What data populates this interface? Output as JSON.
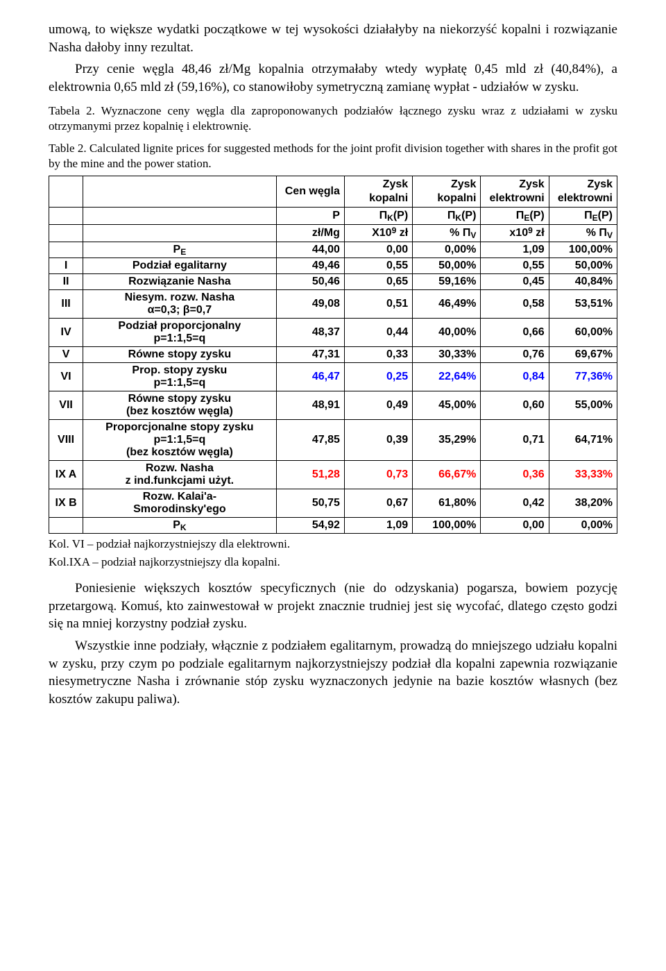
{
  "para1": "umową, to większe wydatki początkowe w tej wysokości działałyby na niekorzyść kopalni i rozwiązanie Nasha dałoby inny rezultat.",
  "para2": "Przy cenie węgla 48,46 zł/Mg kopalnia otrzymałaby wtedy wypłatę 0,45 mld zł (40,84%), a elektrownia 0,65 mld zł (59,16%), co stanowiłoby symetryczną zamianę wypłat - udziałów w zysku.",
  "caption_pl": "Tabela 2. Wyznaczone ceny węgla dla zaproponowanych podziałów łącznego zysku wraz z udziałami w zysku otrzymanymi przez kopalnię i elektrownię.",
  "caption_en": "Table 2. Calculated lignite prices for suggested methods for the joint profit division together with shares in the profit got by the mine and the power station.",
  "header": {
    "cen": "Cen węgla",
    "zk1": "Zysk\nkopalni",
    "zk2": "Zysk\nkopalni",
    "ze1": "Zysk\nelektrowni",
    "ze2": "Zysk\nelektrowni",
    "P": "P",
    "PiK": "Π_K(P)",
    "PiK2": "Π_K(P)",
    "PiE": "Π_E(P)",
    "PiE2": "Π_E(P)",
    "unit_p": "zł/Mg",
    "unit_c": "X10^9 zł",
    "unit_pv": "% Π_V",
    "unit_c2": "x10^9 zł",
    "unit_pv2": "% Π_V"
  },
  "rows": [
    {
      "idx": "",
      "label": "P_E",
      "p": "44,00",
      "c1": "0,00",
      "c2": "0,00%",
      "c3": "1,09",
      "c4": "100,00%",
      "color": "#000000"
    },
    {
      "idx": "I",
      "label": "Podział egalitarny",
      "p": "49,46",
      "c1": "0,55",
      "c2": "50,00%",
      "c3": "0,55",
      "c4": "50,00%",
      "color": "#000000"
    },
    {
      "idx": "II",
      "label": "Rozwiązanie Nasha",
      "p": "50,46",
      "c1": "0,65",
      "c2": "59,16%",
      "c3": "0,45",
      "c4": "40,84%",
      "color": "#000000"
    },
    {
      "idx": "III",
      "label": "Niesym. rozw. Nasha\nα=0,3; β=0,7",
      "p": "49,08",
      "c1": "0,51",
      "c2": "46,49%",
      "c3": "0,58",
      "c4": "53,51%",
      "color": "#000000"
    },
    {
      "idx": "IV",
      "label": "Podział proporcjonalny\np=1:1,5=q",
      "p": "48,37",
      "c1": "0,44",
      "c2": "40,00%",
      "c3": "0,66",
      "c4": "60,00%",
      "color": "#000000"
    },
    {
      "idx": "V",
      "label": "Równe stopy zysku",
      "p": "47,31",
      "c1": "0,33",
      "c2": "30,33%",
      "c3": "0,76",
      "c4": "69,67%",
      "color": "#000000"
    },
    {
      "idx": "VI",
      "label": "Prop. stopy zysku\np=1:1,5=q",
      "p": "46,47",
      "c1": "0,25",
      "c2": "22,64%",
      "c3": "0,84",
      "c4": "77,36%",
      "color": "#0000ff"
    },
    {
      "idx": "VII",
      "label": "Równe stopy zysku\n(bez kosztów węgla)",
      "p": "48,91",
      "c1": "0,49",
      "c2": "45,00%",
      "c3": "0,60",
      "c4": "55,00%",
      "color": "#000000"
    },
    {
      "idx": "VIII",
      "label": "Proporcjonalne stopy zysku\np=1:1,5=q\n(bez kosztów węgla)",
      "p": "47,85",
      "c1": "0,39",
      "c2": "35,29%",
      "c3": "0,71",
      "c4": "64,71%",
      "color": "#000000"
    },
    {
      "idx": "IX A",
      "label": "Rozw. Nasha\nz ind.funkcjami użyt.",
      "p": "51,28",
      "c1": "0,73",
      "c2": "66,67%",
      "c3": "0,36",
      "c4": "33,33%",
      "color": "#ff0000"
    },
    {
      "idx": "IX B",
      "label": "Rozw. Kalai'a-\nSmorodinsky'ego",
      "p": "50,75",
      "c1": "0,67",
      "c2": "61,80%",
      "c3": "0,42",
      "c4": "38,20%",
      "color": "#000000"
    },
    {
      "idx": "",
      "label": "P_K",
      "p": "54,92",
      "c1": "1,09",
      "c2": "100,00%",
      "c3": "0,00",
      "c4": "0,00%",
      "color": "#000000"
    }
  ],
  "footnote1": "Kol. VI    – podział najkorzystniejszy dla elektrowni.",
  "footnote2": "Kol.IXA  – podział najkorzystniejszy dla kopalni.",
  "para3": "Poniesienie większych kosztów specyficznych (nie do odzyskania) pogarsza, bowiem pozycję przetargową. Komuś, kto zainwestował w projekt znacznie trudniej jest się wycofać, dlatego często godzi się na mniej korzystny podział zysku.",
  "para4": "Wszystkie inne podziały, włącznie z podziałem egalitarnym, prowadzą do mniejszego udziału kopalni w zysku, przy czym po podziale egalitarnym najkorzystniejszy podział dla kopalni zapewnia rozwiązanie niesymetryczne Nasha i zrównanie stóp zysku wyznaczonych jedynie na bazie kosztów własnych (bez kosztów zakupu paliwa)."
}
